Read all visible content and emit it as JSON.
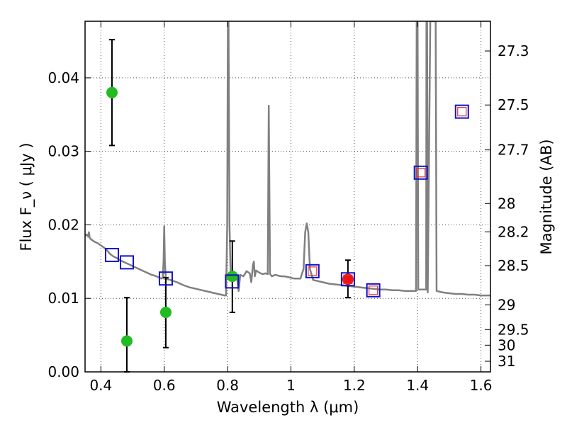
{
  "chart_data": {
    "type": "scatter",
    "xlabel": "Wavelength  λ (μm)",
    "ylabel": "Flux  F_ν  ( μJy )",
    "ylabel_right": "Magnitude (AB)",
    "xlim": [
      0.35,
      1.63
    ],
    "ylim": [
      0.0,
      0.0477
    ],
    "x_ticks": [
      0.4,
      0.6,
      0.8,
      1.0,
      1.2,
      1.4,
      1.6
    ],
    "x_tick_labels": [
      "0.4",
      "0.6",
      "0.8",
      "1",
      "1.2",
      "1.4",
      "1.6"
    ],
    "y_ticks": [
      0.0,
      0.01,
      0.02,
      0.03,
      0.04
    ],
    "y_tick_labels": [
      "0.00",
      "0.01",
      "0.02",
      "0.03",
      "0.04"
    ],
    "right_ticks": [
      {
        "mag": 27.3,
        "label": "27.3"
      },
      {
        "mag": 27.5,
        "label": "27.5"
      },
      {
        "mag": 27.7,
        "label": "27.7"
      },
      {
        "mag": 28.0,
        "label": "28"
      },
      {
        "mag": 28.2,
        "label": "28.2"
      },
      {
        "mag": 28.5,
        "label": "28.5"
      },
      {
        "mag": 29.0,
        "label": "29"
      },
      {
        "mag": 29.5,
        "label": "29.5"
      },
      {
        "mag": 30.0,
        "label": "30"
      },
      {
        "mag": 31.0,
        "label": "31"
      }
    ],
    "grid": true,
    "series": [
      {
        "name": "model spectrum",
        "kind": "line",
        "color": "#808080",
        "points": [
          [
            0.35,
            0.0185
          ],
          [
            0.355,
            0.0187
          ],
          [
            0.36,
            0.0184
          ],
          [
            0.362,
            0.019
          ],
          [
            0.365,
            0.0182
          ],
          [
            0.37,
            0.018
          ],
          [
            0.38,
            0.0177
          ],
          [
            0.39,
            0.0175
          ],
          [
            0.4,
            0.0172
          ],
          [
            0.41,
            0.0169
          ],
          [
            0.42,
            0.0165
          ],
          [
            0.43,
            0.016
          ],
          [
            0.44,
            0.0157
          ],
          [
            0.45,
            0.0155
          ],
          [
            0.46,
            0.0152
          ],
          [
            0.47,
            0.015
          ],
          [
            0.48,
            0.0148
          ],
          [
            0.49,
            0.0146
          ],
          [
            0.5,
            0.0144
          ],
          [
            0.51,
            0.0142
          ],
          [
            0.52,
            0.014
          ],
          [
            0.53,
            0.0138
          ],
          [
            0.54,
            0.0136
          ],
          [
            0.55,
            0.0134
          ],
          [
            0.56,
            0.0132
          ],
          [
            0.57,
            0.0131
          ],
          [
            0.58,
            0.0129
          ],
          [
            0.59,
            0.0127
          ],
          [
            0.595,
            0.0128
          ],
          [
            0.598,
            0.015
          ],
          [
            0.6,
            0.0198
          ],
          [
            0.602,
            0.015
          ],
          [
            0.605,
            0.0127
          ],
          [
            0.61,
            0.0126
          ],
          [
            0.62,
            0.0125
          ],
          [
            0.64,
            0.0122
          ],
          [
            0.66,
            0.0118
          ],
          [
            0.68,
            0.0115
          ],
          [
            0.7,
            0.0113
          ],
          [
            0.72,
            0.0111
          ],
          [
            0.74,
            0.0109
          ],
          [
            0.76,
            0.0107
          ],
          [
            0.78,
            0.0105
          ],
          [
            0.79,
            0.0104
          ],
          [
            0.795,
            0.0104
          ],
          [
            0.799,
            0.02
          ],
          [
            0.801,
            0.0477
          ],
          [
            0.803,
            0.0477
          ],
          [
            0.806,
            0.02
          ],
          [
            0.81,
            0.0125
          ],
          [
            0.82,
            0.013
          ],
          [
            0.83,
            0.0128
          ],
          [
            0.835,
            0.011
          ],
          [
            0.84,
            0.0132
          ],
          [
            0.85,
            0.013
          ],
          [
            0.86,
            0.0137
          ],
          [
            0.87,
            0.0134
          ],
          [
            0.875,
            0.0122
          ],
          [
            0.88,
            0.0145
          ],
          [
            0.883,
            0.015
          ],
          [
            0.886,
            0.013
          ],
          [
            0.89,
            0.0138
          ],
          [
            0.9,
            0.0135
          ],
          [
            0.91,
            0.0133
          ],
          [
            0.92,
            0.0134
          ],
          [
            0.927,
            0.0133
          ],
          [
            0.93,
            0.0362
          ],
          [
            0.934,
            0.0133
          ],
          [
            0.94,
            0.013
          ],
          [
            0.95,
            0.0132
          ],
          [
            0.96,
            0.0131
          ],
          [
            0.97,
            0.013
          ],
          [
            0.98,
            0.013
          ],
          [
            0.99,
            0.0129
          ],
          [
            1.0,
            0.0128
          ],
          [
            1.01,
            0.0127
          ],
          [
            1.02,
            0.0127
          ],
          [
            1.03,
            0.0127
          ],
          [
            1.04,
            0.014
          ],
          [
            1.045,
            0.019
          ],
          [
            1.05,
            0.0202
          ],
          [
            1.055,
            0.019
          ],
          [
            1.06,
            0.014
          ],
          [
            1.07,
            0.0125
          ],
          [
            1.08,
            0.0124
          ],
          [
            1.1,
            0.0122
          ],
          [
            1.12,
            0.012
          ],
          [
            1.14,
            0.0119
          ],
          [
            1.16,
            0.0118
          ],
          [
            1.18,
            0.0117
          ],
          [
            1.2,
            0.0116
          ],
          [
            1.22,
            0.0115
          ],
          [
            1.24,
            0.0114
          ],
          [
            1.26,
            0.0113
          ],
          [
            1.28,
            0.0112
          ],
          [
            1.3,
            0.0112
          ],
          [
            1.32,
            0.0111
          ],
          [
            1.34,
            0.0111
          ],
          [
            1.36,
            0.011
          ],
          [
            1.38,
            0.011
          ],
          [
            1.395,
            0.011
          ],
          [
            1.397,
            0.0477
          ],
          [
            1.4,
            0.0477
          ],
          [
            1.402,
            0.0112
          ],
          [
            1.42,
            0.0112
          ],
          [
            1.427,
            0.0112
          ],
          [
            1.428,
            0.0477
          ],
          [
            1.43,
            0.0477
          ],
          [
            1.432,
            0.0108
          ],
          [
            1.44,
            0.0477
          ],
          [
            1.45,
            0.0477
          ],
          [
            1.457,
            0.0477
          ],
          [
            1.46,
            0.011
          ],
          [
            1.48,
            0.0108
          ],
          [
            1.5,
            0.0107
          ],
          [
            1.52,
            0.0106
          ],
          [
            1.54,
            0.0106
          ],
          [
            1.56,
            0.0105
          ],
          [
            1.58,
            0.0105
          ],
          [
            1.6,
            0.0104
          ],
          [
            1.63,
            0.0104
          ]
        ]
      },
      {
        "name": "observed (green)",
        "kind": "points",
        "color": "#22bb22",
        "points": [
          {
            "x": 0.435,
            "y": 0.038,
            "yerr": [
              0.0308,
              0.0452
            ]
          },
          {
            "x": 0.482,
            "y": 0.0042,
            "yerr": [
              0.0,
              0.0101
            ]
          },
          {
            "x": 0.605,
            "y": 0.0081,
            "yerr": [
              0.0033,
              0.0128
            ]
          },
          {
            "x": 0.815,
            "y": 0.013,
            "yerr": [
              0.0081,
              0.0178
            ]
          }
        ]
      },
      {
        "name": "observed (red)",
        "kind": "points",
        "color": "#ee1111",
        "points": [
          {
            "x": 1.18,
            "y": 0.0126,
            "yerr": [
              0.0101,
              0.0152
            ]
          }
        ]
      },
      {
        "name": "model photometry (blue squares)",
        "kind": "squares",
        "color": "#1111cc",
        "points": [
          {
            "x": 0.435,
            "y": 0.0159
          },
          {
            "x": 0.482,
            "y": 0.0149
          },
          {
            "x": 0.605,
            "y": 0.0127
          },
          {
            "x": 0.814,
            "y": 0.0123
          },
          {
            "x": 1.068,
            "y": 0.0137
          },
          {
            "x": 1.18,
            "y": 0.0126
          },
          {
            "x": 1.26,
            "y": 0.0111
          },
          {
            "x": 1.41,
            "y": 0.0271
          },
          {
            "x": 1.54,
            "y": 0.0354
          }
        ]
      },
      {
        "name": "synthetic (red squares)",
        "kind": "small_squares",
        "color": "#dd3333",
        "points": [
          {
            "x": 1.068,
            "y": 0.0137
          },
          {
            "x": 1.18,
            "y": 0.0126
          },
          {
            "x": 1.26,
            "y": 0.0111
          },
          {
            "x": 1.41,
            "y": 0.0271
          },
          {
            "x": 1.54,
            "y": 0.0354
          }
        ]
      }
    ]
  }
}
